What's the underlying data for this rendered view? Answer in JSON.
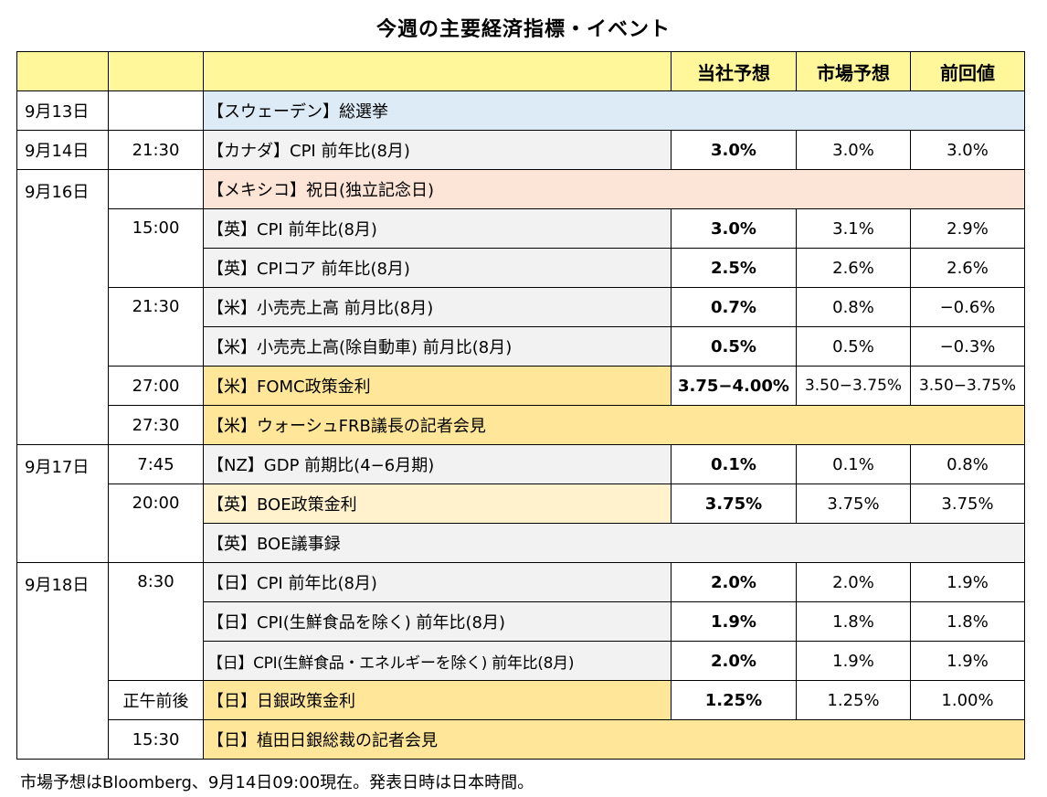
{
  "title": "今週の主要経済指標・イベント",
  "header": {
    "date": "",
    "time": "",
    "event": "",
    "our_forecast": "当社予想",
    "market_forecast": "市場予想",
    "previous": "前回値"
  },
  "rows": [
    {
      "date": "9月13日",
      "time": "",
      "event": "【スウェーデン】総選挙",
      "ours": "",
      "market": "",
      "prev": ""
    },
    {
      "date": "9月14日",
      "time": "21:30",
      "event": "【カナダ】CPI 前年比(8月)",
      "ours": "3.0%",
      "market": "3.0%",
      "prev": "3.0%"
    },
    {
      "date": "9月16日",
      "time": "",
      "event": "【メキシコ】祝日(独立記念日)",
      "ours": "",
      "market": "",
      "prev": ""
    },
    {
      "date": "",
      "time": "15:00",
      "event": "【英】CPI 前年比(8月)",
      "ours": "3.0%",
      "market": "3.1%",
      "prev": "2.9%"
    },
    {
      "date": "",
      "time": "",
      "event": "【英】CPIコア 前年比(8月)",
      "ours": "2.5%",
      "market": "2.6%",
      "prev": "2.6%"
    },
    {
      "date": "",
      "time": "21:30",
      "event": "【米】小売売上高 前月比(8月)",
      "ours": "0.7%",
      "market": "0.8%",
      "prev": "−0.6%"
    },
    {
      "date": "",
      "time": "",
      "event": "【米】小売売上高(除自動車) 前月比(8月)",
      "ours": "0.5%",
      "market": "0.5%",
      "prev": "−0.3%"
    },
    {
      "date": "",
      "time": "27:00",
      "event": "【米】FOMC政策金利",
      "ours": "3.75−4.00%",
      "market": "3.50−3.75%",
      "prev": "3.50−3.75%"
    },
    {
      "date": "",
      "time": "27:30",
      "event": "【米】ウォーシュFRB議長の記者会見",
      "ours": "",
      "market": "",
      "prev": ""
    },
    {
      "date": "9月17日",
      "time": "7:45",
      "event": "【NZ】GDP 前期比(4−6月期)",
      "ours": "0.1%",
      "market": "0.1%",
      "prev": "0.8%"
    },
    {
      "date": "",
      "time": "20:00",
      "event": "【英】BOE政策金利",
      "ours": "3.75%",
      "market": "3.75%",
      "prev": "3.75%"
    },
    {
      "date": "",
      "time": "",
      "event": "【英】BOE議事録",
      "ours": "",
      "market": "",
      "prev": ""
    },
    {
      "date": "9月18日",
      "time": "8:30",
      "event": "【日】CPI 前年比(8月)",
      "ours": "2.0%",
      "market": "2.0%",
      "prev": "1.9%"
    },
    {
      "date": "",
      "time": "",
      "event": "【日】CPI(生鮮食品を除く) 前年比(8月)",
      "ours": "1.9%",
      "market": "1.8%",
      "prev": "1.8%"
    },
    {
      "date": "",
      "time": "",
      "event": "【日】CPI(生鮮食品・エネルギーを除く) 前年比(8月)",
      "ours": "2.0%",
      "market": "1.9%",
      "prev": "1.9%"
    },
    {
      "date": "",
      "time": "正午前後",
      "event": "【日】日銀政策金利",
      "ours": "1.25%",
      "market": "1.25%",
      "prev": "1.00%"
    },
    {
      "date": "",
      "time": "15:30",
      "event": "【日】植田日銀総裁の記者会見",
      "ours": "",
      "market": "",
      "prev": ""
    }
  ],
  "footnote": "市場予想はBloomberg、9月14日09:00現在。発表日時は日本時間。",
  "colors": {
    "header": "#FFF79A",
    "gray": "#F2F2F2",
    "blue": "#DDEBF7",
    "pink": "#FCE4D6",
    "gold": "#FFE699",
    "cream": "#FFF2CC"
  }
}
